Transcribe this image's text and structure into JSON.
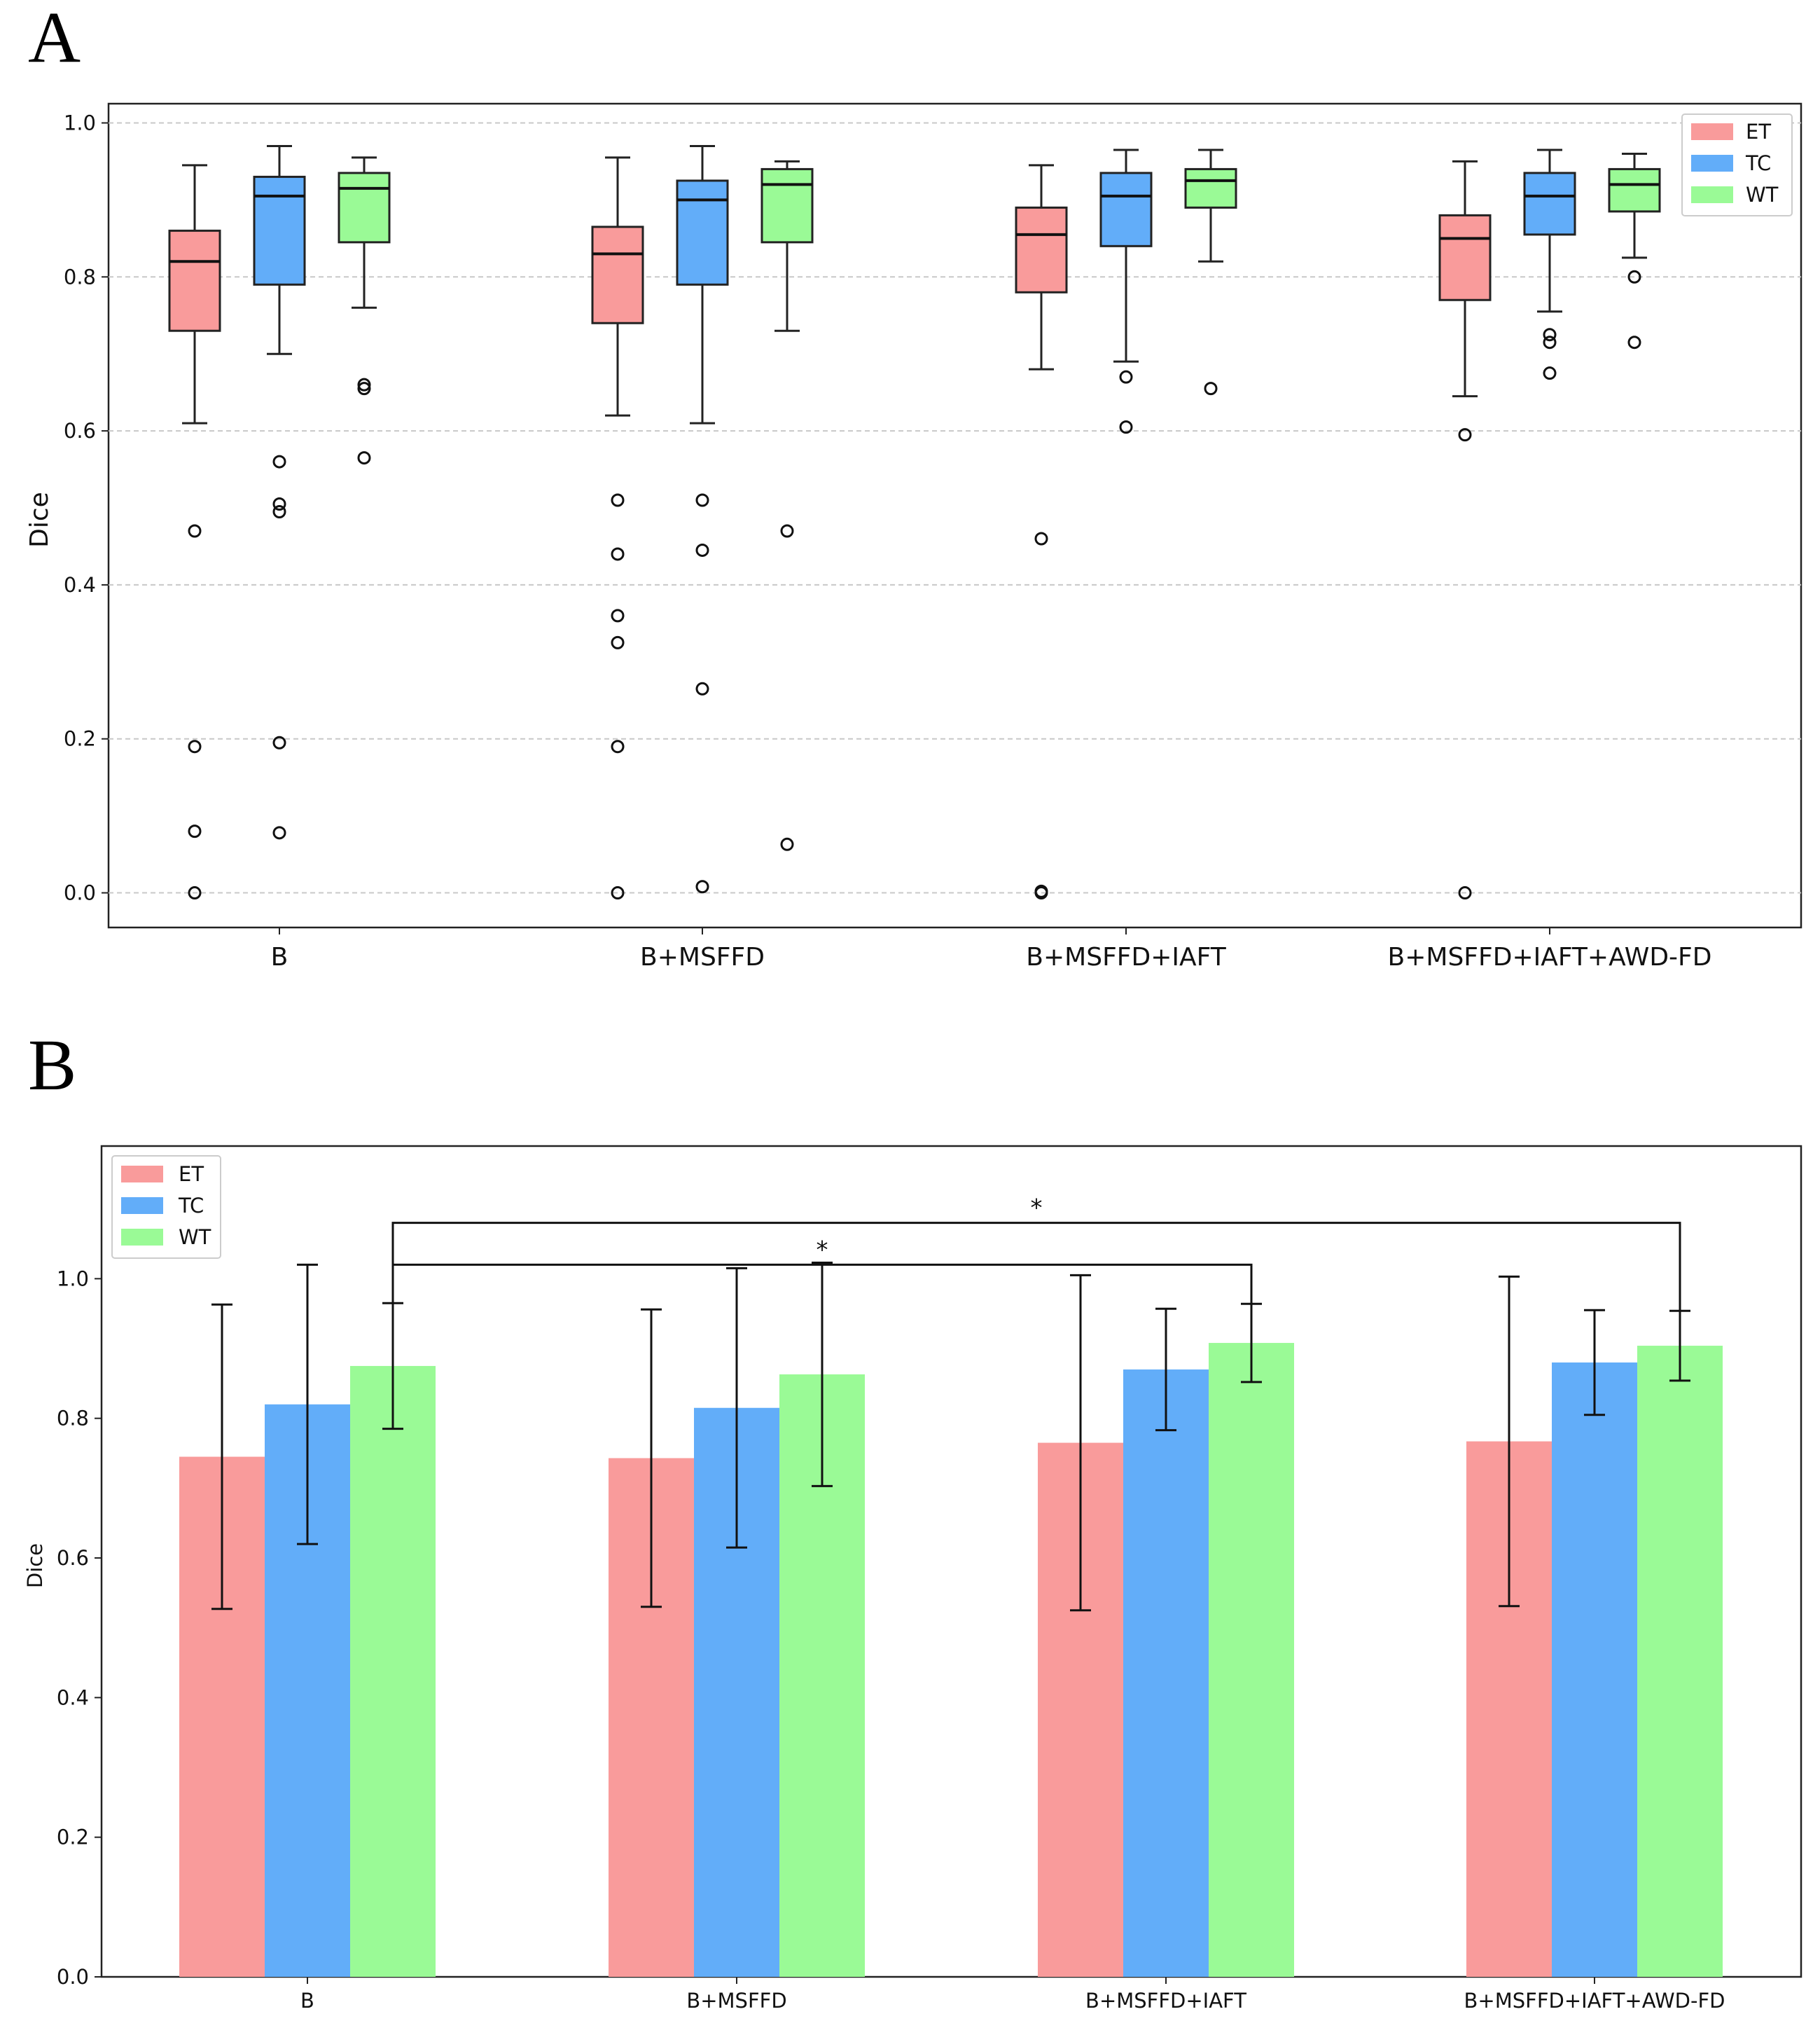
{
  "colors": {
    "ET": "#f99b9b",
    "TC": "#62adf9",
    "WT": "#9afa96"
  },
  "chart_data": [
    {
      "panel": "A",
      "type": "box",
      "title": "",
      "xlabel": "",
      "ylabel": "Dice",
      "ylim": [
        -0.045,
        1.025
      ],
      "yticks": [
        "0.0",
        "0.2",
        "0.4",
        "0.6",
        "0.8",
        "1.0"
      ],
      "grid": "y-dashed",
      "legend_position": "top-right",
      "legend": [
        "ET",
        "TC",
        "WT"
      ],
      "categories": [
        "B",
        "B+MSFFD",
        "B+MSFFD+IAFT",
        "B+MSFFD+IAFT+AWD-FD"
      ],
      "groups": [
        {
          "category": "B",
          "boxes": [
            {
              "series": "ET",
              "whisker_low": 0.61,
              "q1": 0.73,
              "median": 0.82,
              "q3": 0.86,
              "whisker_high": 0.945,
              "outliers": [
                0.47,
                0.19,
                0.08,
                0.0
              ]
            },
            {
              "series": "TC",
              "whisker_low": 0.7,
              "q1": 0.79,
              "median": 0.905,
              "q3": 0.93,
              "whisker_high": 0.97,
              "outliers": [
                0.56,
                0.505,
                0.495,
                0.195,
                0.078
              ]
            },
            {
              "series": "WT",
              "whisker_low": 0.76,
              "q1": 0.845,
              "median": 0.915,
              "q3": 0.935,
              "whisker_high": 0.955,
              "outliers": [
                0.66,
                0.655,
                0.565
              ]
            }
          ]
        },
        {
          "category": "B+MSFFD",
          "boxes": [
            {
              "series": "ET",
              "whisker_low": 0.62,
              "q1": 0.74,
              "median": 0.83,
              "q3": 0.865,
              "whisker_high": 0.955,
              "outliers": [
                0.51,
                0.44,
                0.36,
                0.325,
                0.19,
                0.0
              ]
            },
            {
              "series": "TC",
              "whisker_low": 0.61,
              "q1": 0.79,
              "median": 0.9,
              "q3": 0.925,
              "whisker_high": 0.97,
              "outliers": [
                0.51,
                0.445,
                0.265,
                0.008
              ]
            },
            {
              "series": "WT",
              "whisker_low": 0.73,
              "q1": 0.845,
              "median": 0.92,
              "q3": 0.94,
              "whisker_high": 0.95,
              "outliers": [
                0.47,
                0.063
              ]
            }
          ]
        },
        {
          "category": "B+MSFFD+IAFT",
          "boxes": [
            {
              "series": "ET",
              "whisker_low": 0.68,
              "q1": 0.78,
              "median": 0.855,
              "q3": 0.89,
              "whisker_high": 0.945,
              "outliers": [
                0.46,
                0.002,
                0.0
              ]
            },
            {
              "series": "TC",
              "whisker_low": 0.69,
              "q1": 0.84,
              "median": 0.905,
              "q3": 0.935,
              "whisker_high": 0.965,
              "outliers": [
                0.67,
                0.605
              ]
            },
            {
              "series": "WT",
              "whisker_low": 0.82,
              "q1": 0.89,
              "median": 0.925,
              "q3": 0.94,
              "whisker_high": 0.965,
              "outliers": [
                0.655
              ]
            }
          ]
        },
        {
          "category": "B+MSFFD+IAFT+AWD-FD",
          "boxes": [
            {
              "series": "ET",
              "whisker_low": 0.645,
              "q1": 0.77,
              "median": 0.85,
              "q3": 0.88,
              "whisker_high": 0.95,
              "outliers": [
                0.595,
                0.0
              ]
            },
            {
              "series": "TC",
              "whisker_low": 0.755,
              "q1": 0.855,
              "median": 0.905,
              "q3": 0.935,
              "whisker_high": 0.965,
              "outliers": [
                0.725,
                0.715,
                0.675
              ]
            },
            {
              "series": "WT",
              "whisker_low": 0.825,
              "q1": 0.885,
              "median": 0.92,
              "q3": 0.94,
              "whisker_high": 0.96,
              "outliers": [
                0.8,
                0.715
              ]
            }
          ]
        }
      ]
    },
    {
      "panel": "B",
      "type": "bar",
      "title": "",
      "xlabel": "",
      "ylabel": "Dice",
      "ylim": [
        0,
        1.19
      ],
      "yticks": [
        "0.0",
        "0.2",
        "0.4",
        "0.6",
        "0.8",
        "1.0"
      ],
      "legend_position": "top-left",
      "categories": [
        "B",
        "B+MSFFD",
        "B+MSFFD+IAFT",
        "B+MSFFD+IAFT+AWD-FD"
      ],
      "series": [
        {
          "name": "ET",
          "values": [
            0.745,
            0.743,
            0.765,
            0.767
          ],
          "errors": [
            0.218,
            0.213,
            0.24,
            0.236
          ]
        },
        {
          "name": "TC",
          "values": [
            0.82,
            0.815,
            0.87,
            0.88
          ],
          "errors": [
            0.2,
            0.2,
            0.087,
            0.075
          ]
        },
        {
          "name": "WT",
          "values": [
            0.875,
            0.863,
            0.908,
            0.904
          ],
          "errors": [
            0.09,
            0.16,
            0.056,
            0.05
          ]
        }
      ],
      "significance": [
        {
          "from_category": 0,
          "from_series": "WT",
          "to_category": 2,
          "to_series": "WT",
          "level": 1.02,
          "label": "*"
        },
        {
          "from_category": 0,
          "from_series": "WT",
          "to_category": 3,
          "to_series": "WT",
          "level": 1.08,
          "label": "*"
        }
      ]
    }
  ]
}
